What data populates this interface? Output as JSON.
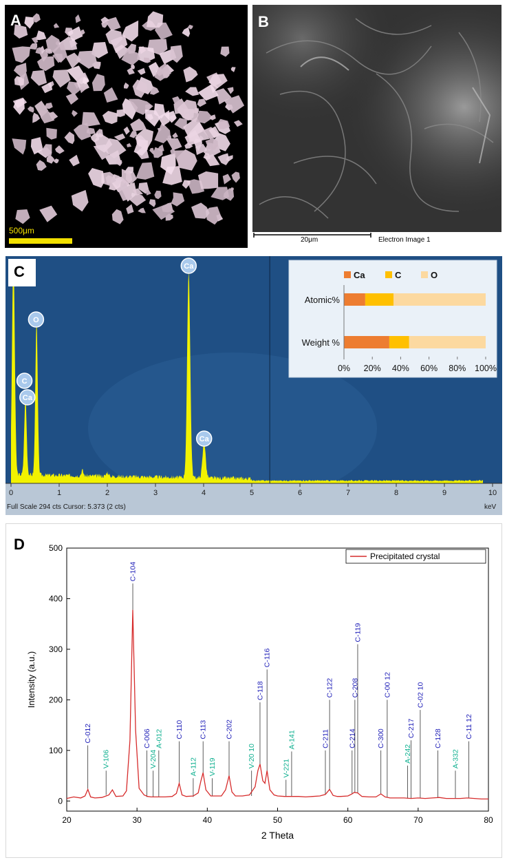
{
  "panels": {
    "a": {
      "letter": "A",
      "scale_bar_label": "500μm"
    },
    "b": {
      "letter": "B",
      "scale_bar_label": "20μm",
      "image_label": "Electron Image 1"
    },
    "c": {
      "letter": "C",
      "status_text": "Full Scale 294 cts Cursor: 5.373  (2 cts)",
      "unit_label": "keV"
    },
    "d": {
      "letter": "D"
    }
  },
  "colors": {
    "eds_background": "#1f4f84",
    "eds_spectrum": "#f2f200",
    "ca": "#ed7d31",
    "c": "#ffc000",
    "o": "#fcd9a0",
    "xrd_line": "#d62b2b",
    "calcite_label": "#1f1fb8",
    "other_label": "#10b090"
  },
  "chart_data": [
    {
      "type": "line",
      "panel": "C",
      "xlim": [
        0,
        10
      ],
      "xticks": [
        0,
        1,
        2,
        3,
        4,
        5,
        6,
        7,
        8,
        9,
        10
      ],
      "xlabel": "keV",
      "cursor": 5.373,
      "peaks": [
        {
          "label": "Ca",
          "x": 3.69
        },
        {
          "label": "O",
          "x": 0.52
        },
        {
          "label": "C",
          "x": 0.28
        },
        {
          "label": "Ca",
          "x": 0.34
        },
        {
          "label": "Ca",
          "x": 4.01
        }
      ]
    },
    {
      "type": "bar",
      "panel": "C-inset",
      "stacked": true,
      "categories": [
        "Atomic%",
        "Weight %"
      ],
      "series": [
        {
          "name": "Ca",
          "values": [
            15,
            32
          ]
        },
        {
          "name": "C",
          "values": [
            20,
            14
          ]
        },
        {
          "name": "O",
          "values": [
            65,
            54
          ]
        }
      ],
      "xticks": [
        "0%",
        "20%",
        "40%",
        "60%",
        "80%",
        "100%"
      ],
      "legend": "top"
    },
    {
      "type": "line",
      "panel": "D",
      "xlabel": "2 Theta",
      "ylabel": "Intensity (a.u.)",
      "xlim": [
        20,
        80
      ],
      "ylim": [
        -20,
        500
      ],
      "xticks": [
        20,
        30,
        40,
        50,
        60,
        70,
        80
      ],
      "yticks": [
        0,
        100,
        200,
        300,
        400,
        500
      ],
      "legend": "top-right",
      "series": [
        {
          "name": "Precipitated crystal",
          "points": [
            [
              20,
              5
            ],
            [
              21,
              8
            ],
            [
              22,
              6
            ],
            [
              22.6,
              10
            ],
            [
              23.0,
              23
            ],
            [
              23.4,
              8
            ],
            [
              24,
              6
            ],
            [
              25,
              7
            ],
            [
              25.6,
              10
            ],
            [
              26.0,
              12
            ],
            [
              26.5,
              22
            ],
            [
              27,
              9
            ],
            [
              28,
              10
            ],
            [
              28.5,
              20
            ],
            [
              29.0,
              120
            ],
            [
              29.4,
              378
            ],
            [
              29.8,
              140
            ],
            [
              30.3,
              25
            ],
            [
              31,
              12
            ],
            [
              31.5,
              9
            ],
            [
              32,
              8
            ],
            [
              33,
              8
            ],
            [
              34,
              8
            ],
            [
              35,
              9
            ],
            [
              35.6,
              15
            ],
            [
              36.0,
              35
            ],
            [
              36.4,
              12
            ],
            [
              37,
              9
            ],
            [
              38,
              10
            ],
            [
              38.7,
              16
            ],
            [
              39.1,
              40
            ],
            [
              39.4,
              56
            ],
            [
              39.8,
              22
            ],
            [
              40.5,
              10
            ],
            [
              41,
              10
            ],
            [
              42,
              10
            ],
            [
              42.6,
              22
            ],
            [
              43.1,
              50
            ],
            [
              43.5,
              18
            ],
            [
              44,
              10
            ],
            [
              45,
              10
            ],
            [
              46,
              12
            ],
            [
              46.8,
              28
            ],
            [
              47.2,
              60
            ],
            [
              47.5,
              73
            ],
            [
              47.9,
              40
            ],
            [
              48.2,
              35
            ],
            [
              48.5,
              60
            ],
            [
              48.9,
              22
            ],
            [
              49.5,
              12
            ],
            [
              50,
              10
            ],
            [
              51,
              9
            ],
            [
              52,
              9
            ],
            [
              53,
              9
            ],
            [
              54,
              8
            ],
            [
              55,
              9
            ],
            [
              56,
              10
            ],
            [
              56.8,
              13
            ],
            [
              57.4,
              23
            ],
            [
              57.9,
              11
            ],
            [
              58.5,
              9
            ],
            [
              59,
              9
            ],
            [
              60,
              10
            ],
            [
              60.6,
              14
            ],
            [
              60.9,
              17
            ],
            [
              61.4,
              16
            ],
            [
              62,
              9
            ],
            [
              63,
              8
            ],
            [
              64,
              8
            ],
            [
              64.7,
              14
            ],
            [
              65.3,
              8
            ],
            [
              66,
              6
            ],
            [
              67,
              6
            ],
            [
              68,
              6
            ],
            [
              69,
              5
            ],
            [
              70,
              6
            ],
            [
              71,
              5
            ],
            [
              72,
              6
            ],
            [
              73,
              7
            ],
            [
              74,
              5
            ],
            [
              75,
              5
            ],
            [
              76,
              5
            ],
            [
              77,
              6
            ],
            [
              78,
              5
            ],
            [
              79,
              4
            ],
            [
              80,
              4
            ]
          ]
        }
      ],
      "annotations": [
        {
          "label": "C-012",
          "x": 23.0,
          "y": 24,
          "top": 110,
          "phase": "calcite"
        },
        {
          "label": "V-106",
          "x": 25.6,
          "y": 12,
          "top": 60,
          "phase": "other"
        },
        {
          "label": "C-104",
          "x": 29.4,
          "y": 378,
          "top": 430,
          "phase": "calcite"
        },
        {
          "label": "C-006",
          "x": 31.4,
          "y": 8,
          "top": 100,
          "phase": "calcite"
        },
        {
          "label": "V-204",
          "x": 32.3,
          "y": 8,
          "top": 60,
          "phase": "other"
        },
        {
          "label": "A-012",
          "x": 33.1,
          "y": 8,
          "top": 100,
          "phase": "other"
        },
        {
          "label": "C-110",
          "x": 36.0,
          "y": 35,
          "top": 118,
          "phase": "calcite"
        },
        {
          "label": "A-112",
          "x": 38.0,
          "y": 8,
          "top": 45,
          "phase": "other"
        },
        {
          "label": "C-113",
          "x": 39.4,
          "y": 56,
          "top": 118,
          "phase": "calcite"
        },
        {
          "label": "V-119",
          "x": 40.7,
          "y": 10,
          "top": 45,
          "phase": "other"
        },
        {
          "label": "C-202",
          "x": 43.1,
          "y": 50,
          "top": 118,
          "phase": "calcite"
        },
        {
          "label": "V-20 10",
          "x": 46.3,
          "y": 10,
          "top": 60,
          "phase": "other"
        },
        {
          "label": "C-118",
          "x": 47.5,
          "y": 73,
          "top": 195,
          "phase": "calcite"
        },
        {
          "label": "C-116",
          "x": 48.5,
          "y": 60,
          "top": 260,
          "phase": "calcite"
        },
        {
          "label": "V-221",
          "x": 51.2,
          "y": 9,
          "top": 42,
          "phase": "other"
        },
        {
          "label": "A-141",
          "x": 52.0,
          "y": 9,
          "top": 98,
          "phase": "other"
        },
        {
          "label": "C-211",
          "x": 56.8,
          "y": 13,
          "top": 100,
          "phase": "calcite"
        },
        {
          "label": "C-122",
          "x": 57.4,
          "y": 23,
          "top": 200,
          "phase": "calcite"
        },
        {
          "label": "C-214",
          "x": 60.6,
          "y": 14,
          "top": 100,
          "phase": "calcite"
        },
        {
          "label": "C-208",
          "x": 61.0,
          "y": 17,
          "top": 200,
          "phase": "calcite"
        },
        {
          "label": "C-119",
          "x": 61.4,
          "y": 16,
          "top": 310,
          "phase": "calcite"
        },
        {
          "label": "C-300",
          "x": 64.7,
          "y": 14,
          "top": 100,
          "phase": "calcite"
        },
        {
          "label": "C-00 12",
          "x": 65.6,
          "y": 8,
          "top": 200,
          "phase": "calcite"
        },
        {
          "label": "A-242",
          "x": 68.5,
          "y": 5,
          "top": 70,
          "phase": "other"
        },
        {
          "label": "C-217",
          "x": 69.0,
          "y": 5,
          "top": 120,
          "phase": "calcite"
        },
        {
          "label": "C-02 10",
          "x": 70.3,
          "y": 6,
          "top": 180,
          "phase": "calcite"
        },
        {
          "label": "C-128",
          "x": 72.8,
          "y": 7,
          "top": 100,
          "phase": "calcite"
        },
        {
          "label": "A-332",
          "x": 75.3,
          "y": 5,
          "top": 60,
          "phase": "other"
        },
        {
          "label": "C-11 12",
          "x": 77.2,
          "y": 6,
          "top": 118,
          "phase": "calcite"
        }
      ]
    }
  ]
}
